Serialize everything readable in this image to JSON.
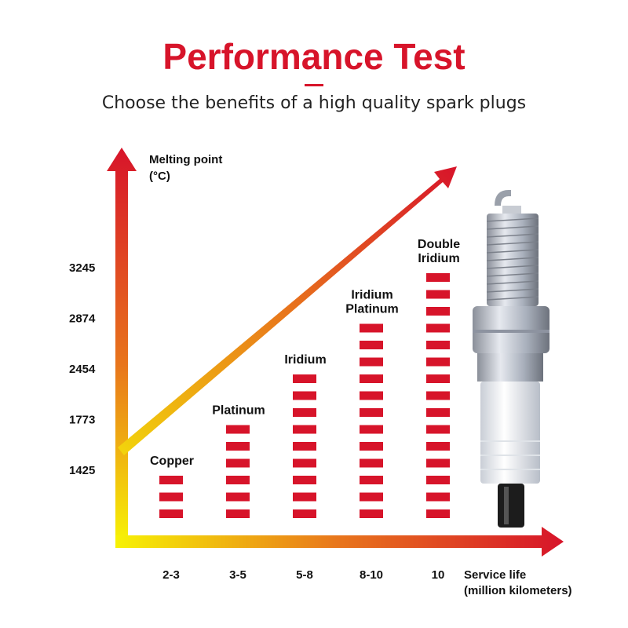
{
  "chart_data": {
    "type": "bar",
    "title": "Performance Test",
    "subtitle": "Choose the benefits of a high quality spark plugs",
    "y_axis_label": [
      "Melting point",
      "(°C)"
    ],
    "x_axis_label": [
      "Service life",
      "(million kilometers)"
    ],
    "categories": [
      "2-3",
      "3-5",
      "5-8",
      "8-10",
      "10"
    ],
    "bar_labels": [
      [
        "Copper"
      ],
      [
        "Platinum"
      ],
      [
        "Iridium"
      ],
      [
        "Iridium",
        "Platinum"
      ],
      [
        "Double",
        "Iridium"
      ]
    ],
    "values": [
      1425,
      1773,
      2454,
      2874,
      3245
    ],
    "yticks": [
      1425,
      1773,
      2454,
      2874,
      3245
    ],
    "color": "#d7142a"
  }
}
